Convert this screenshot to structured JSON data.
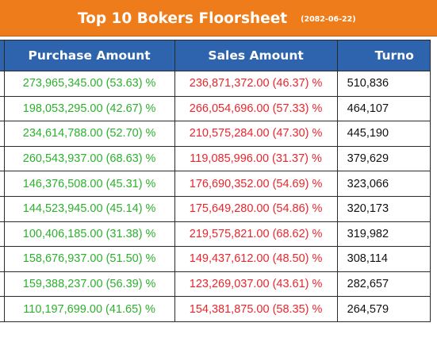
{
  "banner": {
    "title": "Top 10 Bokers Floorsheet",
    "date": "(2082-06-22)",
    "color": "#ef7c1a"
  },
  "table": {
    "header_color": "#2e64ae",
    "purchase_color": "#2db02d",
    "sales_color": "#e8262c",
    "columns": {
      "purchase": "Purchase Amount",
      "sales": "Sales Amount",
      "turnover": "Turno"
    },
    "rows": [
      {
        "purchase": "273,965,345.00 (53.63) %",
        "sales": "236,871,372.00 (46.37) %",
        "turnover": "510,836"
      },
      {
        "purchase": "198,053,295.00 (42.67) %",
        "sales": "266,054,696.00 (57.33) %",
        "turnover": "464,107"
      },
      {
        "purchase": "234,614,788.00 (52.70) %",
        "sales": "210,575,284.00 (47.30) %",
        "turnover": "445,190"
      },
      {
        "purchase": "260,543,937.00 (68.63) %",
        "sales": "119,085,996.00 (31.37) %",
        "turnover": "379,629"
      },
      {
        "purchase": "146,376,508.00 (45.31) %",
        "sales": "176,690,352.00 (54.69) %",
        "turnover": "323,066"
      },
      {
        "purchase": "144,523,945.00 (45.14) %",
        "sales": "175,649,280.00 (54.86) %",
        "turnover": "320,173"
      },
      {
        "purchase": "100,406,185.00 (31.38) %",
        "sales": "219,575,821.00 (68.62) %",
        "turnover": "319,982"
      },
      {
        "purchase": "158,676,937.00 (51.50) %",
        "sales": "149,437,612.00 (48.50) %",
        "turnover": "308,114"
      },
      {
        "purchase": "159,388,237.00 (56.39) %",
        "sales": "123,269,037.00 (43.61) %",
        "turnover": "282,657"
      },
      {
        "purchase": "110,197,699.00 (41.65) %",
        "sales": "154,381,875.00 (58.35) %",
        "turnover": "264,579"
      }
    ]
  }
}
